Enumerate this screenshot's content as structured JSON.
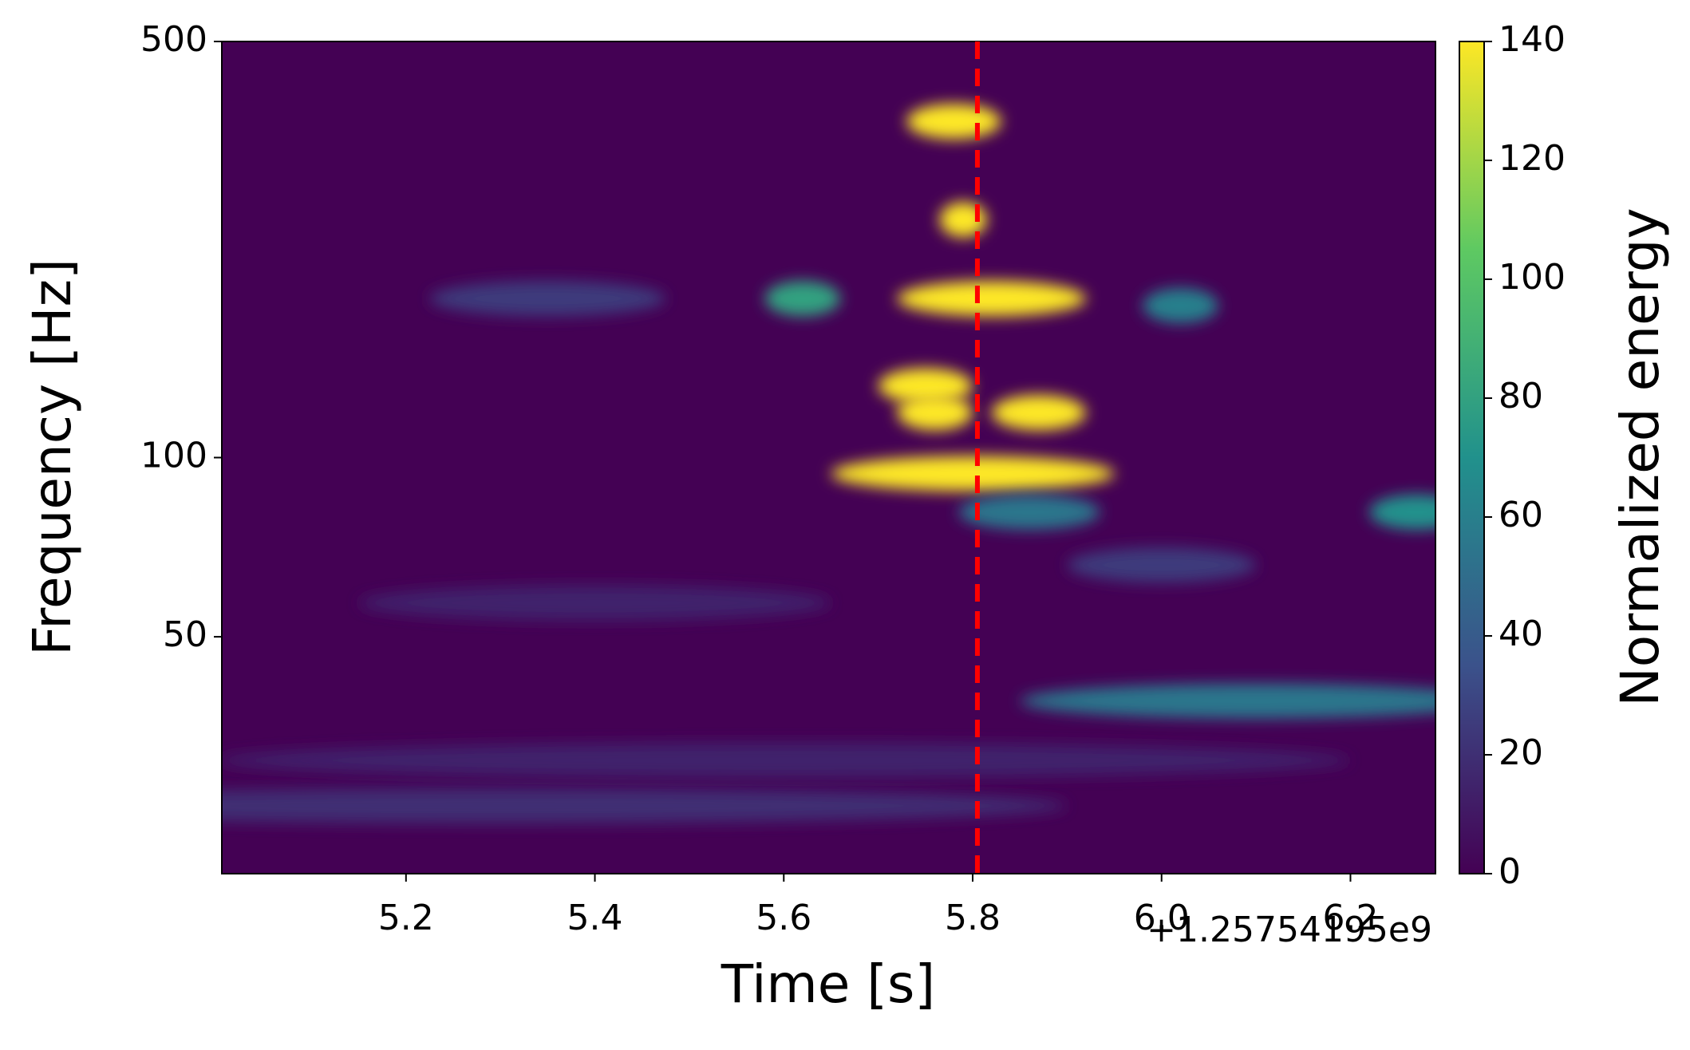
{
  "chart_data": {
    "type": "spectrogram",
    "xlabel": "Time [s]",
    "ylabel": "Frequency [Hz]",
    "x_offset_label": "+1.25754195e9",
    "xlim": [
      5.005,
      6.29
    ],
    "xticks": [
      5.2,
      5.4,
      5.6,
      5.8,
      {
        "value": 6.0,
        "label": "6.0"
      },
      6.2
    ],
    "ylim": [
      20,
      500
    ],
    "yticks": [
      50,
      100,
      500
    ],
    "log_y": true,
    "background": "#440154",
    "features": {
      "x": [
        5.78,
        5.79,
        5.82,
        5.75,
        5.76,
        5.87,
        5.8,
        5.62,
        6.02,
        6.1,
        6.27,
        5.86,
        5.35,
        6.0,
        5.4,
        5.3,
        5.6
      ],
      "y": [
        367,
        251,
        185,
        132,
        119,
        119,
        94,
        185,
        180,
        39,
        81,
        81,
        185,
        66,
        57,
        26,
        31
      ],
      "duration": [
        0.1,
        0.05,
        0.2,
        0.1,
        0.08,
        0.1,
        0.3,
        0.08,
        0.08,
        0.5,
        0.1,
        0.15,
        0.25,
        0.2,
        0.5,
        1.2,
        1.2
      ],
      "values": [
        140,
        140,
        140,
        140,
        140,
        140,
        140,
        80,
        60,
        55,
        70,
        55,
        25,
        25,
        15,
        20,
        15
      ]
    },
    "vline": {
      "x": 5.805,
      "color": "#ff0000"
    },
    "colorbar": {
      "label": "Normalized energy",
      "lim": [
        0,
        140
      ],
      "ticks": [
        0,
        20,
        40,
        60,
        80,
        100,
        120,
        140
      ]
    }
  }
}
